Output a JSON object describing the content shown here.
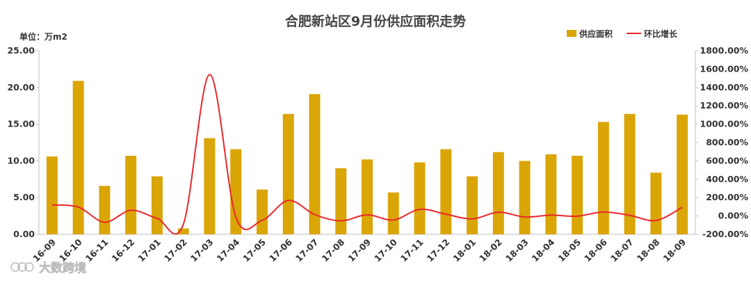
{
  "chart_data": {
    "type": "bar+line",
    "title": "合肥新站区9月份供应面积走势",
    "unit_label": "单位：万m2",
    "categories": [
      "16-09",
      "16-10",
      "16-11",
      "16-12",
      "17-01",
      "17-02",
      "17-03",
      "17-04",
      "17-05",
      "17-06",
      "17-07",
      "17-08",
      "17-09",
      "17-10",
      "17-11",
      "17-12",
      "18-01",
      "18-02",
      "18-03",
      "18-04",
      "18-05",
      "18-06",
      "18-07",
      "18-08",
      "18-09"
    ],
    "series": [
      {
        "name": "供应面积",
        "type": "bar",
        "axis": "left",
        "color": "#DAA507",
        "values": [
          10.6,
          20.9,
          6.6,
          10.7,
          7.9,
          0.8,
          13.1,
          11.6,
          6.1,
          16.4,
          19.1,
          9.0,
          10.2,
          5.7,
          9.8,
          11.6,
          7.9,
          11.2,
          10.0,
          10.9,
          10.7,
          15.3,
          16.4,
          8.4,
          16.3
        ]
      },
      {
        "name": "环比增长",
        "type": "line",
        "axis": "right",
        "color": "#E8262B",
        "values": [
          120,
          97,
          -68,
          62,
          -26,
          -90,
          1540,
          -11,
          -47,
          169,
          16,
          -53,
          13,
          -44,
          72,
          19,
          -32,
          41,
          -11,
          9,
          -2,
          43,
          7,
          -49,
          94
        ]
      }
    ],
    "y_left": {
      "min": 0,
      "max": 25,
      "step": 5,
      "tick_labels": [
        "0.00",
        "5.00",
        "10.00",
        "15.00",
        "20.00",
        "25.00"
      ]
    },
    "y_right": {
      "min": -200,
      "max": 1800,
      "step": 200,
      "tick_labels": [
        "-200.00%",
        "0.00%",
        "200.00%",
        "400.00%",
        "600.00%",
        "800.00%",
        "1000.00%",
        "1200.00%",
        "1400.00%",
        "1600.00%",
        "1800.00%"
      ]
    },
    "grid": false,
    "legend_position": "top-right"
  },
  "watermark": "大数跨境"
}
